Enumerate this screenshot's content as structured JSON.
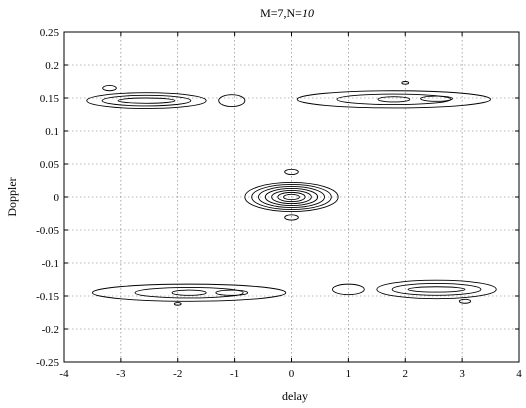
{
  "chart_data": {
    "type": "contour",
    "title_prefix": "M=7,N=",
    "title_suffix": "10",
    "xlabel": "delay",
    "ylabel": "Doppler",
    "xlim": [
      -4,
      4
    ],
    "ylim": [
      -0.25,
      0.25
    ],
    "grid": true,
    "x_ticks": [
      "-4",
      "-3",
      "-2",
      "-1",
      "0",
      "1",
      "2",
      "3",
      "4"
    ],
    "y_ticks": [
      "0.25",
      "0.2",
      "0.15",
      "0.1",
      "0.05",
      "0",
      "-0.05",
      "-0.1",
      "-0.15",
      "-0.2",
      "-0.25"
    ],
    "contour_groups": [
      {
        "name": "center-peak",
        "cx": 0,
        "cy": 0,
        "rx": [
          0.82,
          0.7,
          0.58,
          0.46,
          0.35,
          0.24,
          0.14
        ],
        "ry": [
          0.022,
          0.019,
          0.016,
          0.013,
          0.01,
          0.007,
          0.004
        ]
      },
      {
        "name": "center-upper-blip",
        "cx": 0,
        "cy": 0.038,
        "rx": [
          0.12
        ],
        "ry": [
          0.004
        ]
      },
      {
        "name": "center-lower-blip",
        "cx": 0,
        "cy": -0.031,
        "rx": [
          0.12
        ],
        "ry": [
          0.004
        ]
      },
      {
        "name": "ridge-upper-left",
        "cx": -2.55,
        "cy": 0.146,
        "rx": [
          1.05,
          0.78,
          0.5
        ],
        "ry": [
          0.012,
          0.008,
          0.004
        ]
      },
      {
        "name": "ridge-upper-left-blip",
        "cx": -3.2,
        "cy": 0.165,
        "rx": [
          0.12
        ],
        "ry": [
          0.004
        ]
      },
      {
        "name": "ridge-upper-left-small",
        "cx": -1.05,
        "cy": 0.146,
        "rx": [
          0.23
        ],
        "ry": [
          0.009
        ]
      },
      {
        "name": "ridge-upper-right",
        "cx": 1.8,
        "cy": 0.148,
        "rx": [
          1.7,
          1.0,
          0.28
        ],
        "ry": [
          0.013,
          0.008,
          0.004
        ]
      },
      {
        "name": "ridge-upper-right-inner",
        "cx": 2.55,
        "cy": 0.149,
        "rx": [
          0.28
        ],
        "ry": [
          0.004
        ]
      },
      {
        "name": "ridge-upper-right-blip",
        "cx": 2.0,
        "cy": 0.173,
        "rx": [
          0.06
        ],
        "ry": [
          0.002
        ]
      },
      {
        "name": "ridge-lower-left",
        "cx": -1.8,
        "cy": -0.145,
        "rx": [
          1.7,
          0.95,
          0.3
        ],
        "ry": [
          0.013,
          0.008,
          0.004
        ]
      },
      {
        "name": "ridge-lower-left-inner",
        "cx": -1.05,
        "cy": -0.145,
        "rx": [
          0.28
        ],
        "ry": [
          0.004
        ]
      },
      {
        "name": "ridge-lower-left-blip",
        "cx": -2.0,
        "cy": -0.162,
        "rx": [
          0.06
        ],
        "ry": [
          0.002
        ]
      },
      {
        "name": "ridge-lower-right-small",
        "cx": 1.0,
        "cy": -0.14,
        "rx": [
          0.28
        ],
        "ry": [
          0.008
        ]
      },
      {
        "name": "ridge-lower-right",
        "cx": 2.55,
        "cy": -0.14,
        "rx": [
          1.05,
          0.78,
          0.5
        ],
        "ry": [
          0.014,
          0.009,
          0.004
        ]
      },
      {
        "name": "ridge-lower-right-blip",
        "cx": 3.05,
        "cy": -0.158,
        "rx": [
          0.1
        ],
        "ry": [
          0.003
        ]
      }
    ]
  }
}
